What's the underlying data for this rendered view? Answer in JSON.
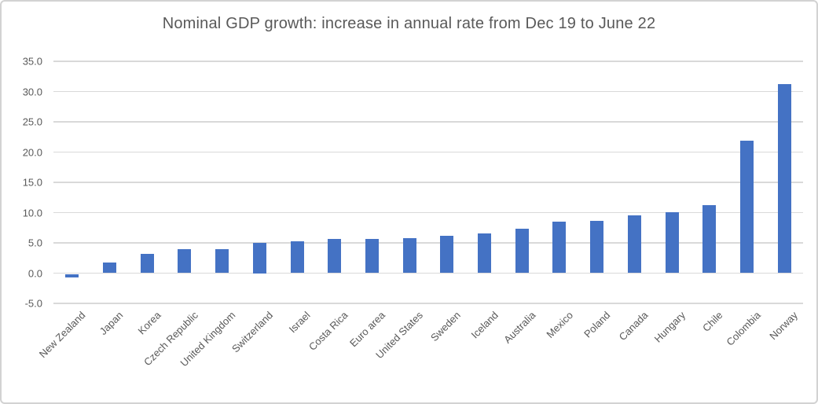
{
  "frame": {
    "background": "#ffffff",
    "border_color": "#d2d2d2"
  },
  "chart_data": {
    "type": "bar",
    "title": "Nominal GDP growth: increase in annual rate from Dec 19 to June 22",
    "categories": [
      "New Zealand",
      "Japan",
      "Korea",
      "Czech Republic",
      "United Kingdom",
      "Switzerland",
      "Israel",
      "Costa Rica",
      "Euro area",
      "United States",
      "Sweden",
      "Iceland",
      "Australia",
      "Mexico",
      "Poland",
      "Canada",
      "Hungary",
      "Chile",
      "Colombia",
      "Norway"
    ],
    "values": [
      -0.6,
      1.7,
      3.2,
      3.9,
      3.9,
      5.0,
      5.3,
      5.6,
      5.7,
      5.8,
      6.2,
      6.6,
      7.4,
      8.5,
      8.7,
      9.6,
      10.1,
      11.2,
      21.9,
      31.2
    ],
    "xlabel": "",
    "ylabel": "",
    "ylim": [
      -5,
      35
    ],
    "ytick_step": 5,
    "ytick_labels": [
      "35.0",
      "30.0",
      "25.0",
      "20.0",
      "15.0",
      "10.0",
      "5.0",
      "0.0",
      "-5.0"
    ],
    "grid": true,
    "legend": false,
    "bar_color": "#4472C4",
    "gridline_color": "#d9d9d9",
    "text_color": "#595959"
  }
}
